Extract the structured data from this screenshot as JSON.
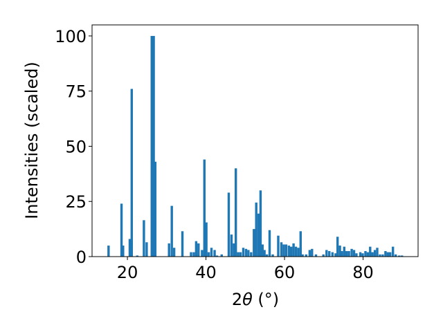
{
  "chart_data": {
    "type": "bar",
    "xlabel": "2θ (°)",
    "xlabel_parts": {
      "main": "2",
      "theta": "θ",
      "unit": " (°)"
    },
    "ylabel": "Intensities (scaled)",
    "xlim": [
      11,
      94
    ],
    "ylim": [
      0,
      105
    ],
    "xticks": [
      20,
      40,
      60,
      80
    ],
    "yticks": [
      0,
      25,
      50,
      75,
      100
    ],
    "bar_width": 0.6,
    "color": "#1f77b4",
    "grid": false,
    "x": [
      15.2,
      18.5,
      18.9,
      20.6,
      21.1,
      22.5,
      24.2,
      24.9,
      26.2,
      26.7,
      27.1,
      30.6,
      31.3,
      31.9,
      34.0,
      36.2,
      36.9,
      37.5,
      38.1,
      39.0,
      39.6,
      40.1,
      40.7,
      41.4,
      42.2,
      42.8,
      44.0,
      45.8,
      46.5,
      47.1,
      47.6,
      48.2,
      48.8,
      49.5,
      50.2,
      50.8,
      51.5,
      52.2,
      52.8,
      53.4,
      53.9,
      54.4,
      54.9,
      55.5,
      56.2,
      57.0,
      58.4,
      59.2,
      59.8,
      60.4,
      61.1,
      61.7,
      62.3,
      62.9,
      63.5,
      64.1,
      64.6,
      65.5,
      66.4,
      67.0,
      68.0,
      69.9,
      70.7,
      71.4,
      72.2,
      73.0,
      73.5,
      74.1,
      74.6,
      75.2,
      75.8,
      76.4,
      77.1,
      77.7,
      78.3,
      79.3,
      79.9,
      80.6,
      81.2,
      81.8,
      82.4,
      83.0,
      83.6,
      84.3,
      85.0,
      85.7,
      86.3,
      86.9,
      87.6,
      88.3,
      89.2,
      89.9
    ],
    "values": [
      5,
      24,
      5,
      8,
      76,
      0.5,
      16.5,
      6.5,
      100,
      100,
      43,
      6,
      23,
      4,
      11.5,
      2,
      2,
      7,
      6,
      3,
      44,
      15.5,
      2,
      4,
      3,
      0.5,
      1,
      29,
      10,
      6,
      40,
      2,
      2,
      4,
      3.5,
      3,
      2,
      12.5,
      24.5,
      19.5,
      30,
      5.5,
      3,
      1,
      12,
      1,
      9.5,
      6.5,
      5.5,
      5.5,
      5,
      4.5,
      6,
      4.5,
      4,
      11.5,
      1,
      1,
      3,
      3.5,
      1,
      1,
      3,
      2.5,
      2,
      1.5,
      9,
      5,
      2.5,
      4.5,
      2.5,
      2.5,
      3.5,
      3,
      1.5,
      2,
      1.5,
      2.5,
      2,
      4.5,
      2,
      3,
      4,
      1,
      1,
      2.5,
      2,
      2,
      4.5,
      1,
      0.5,
      0.5
    ]
  }
}
